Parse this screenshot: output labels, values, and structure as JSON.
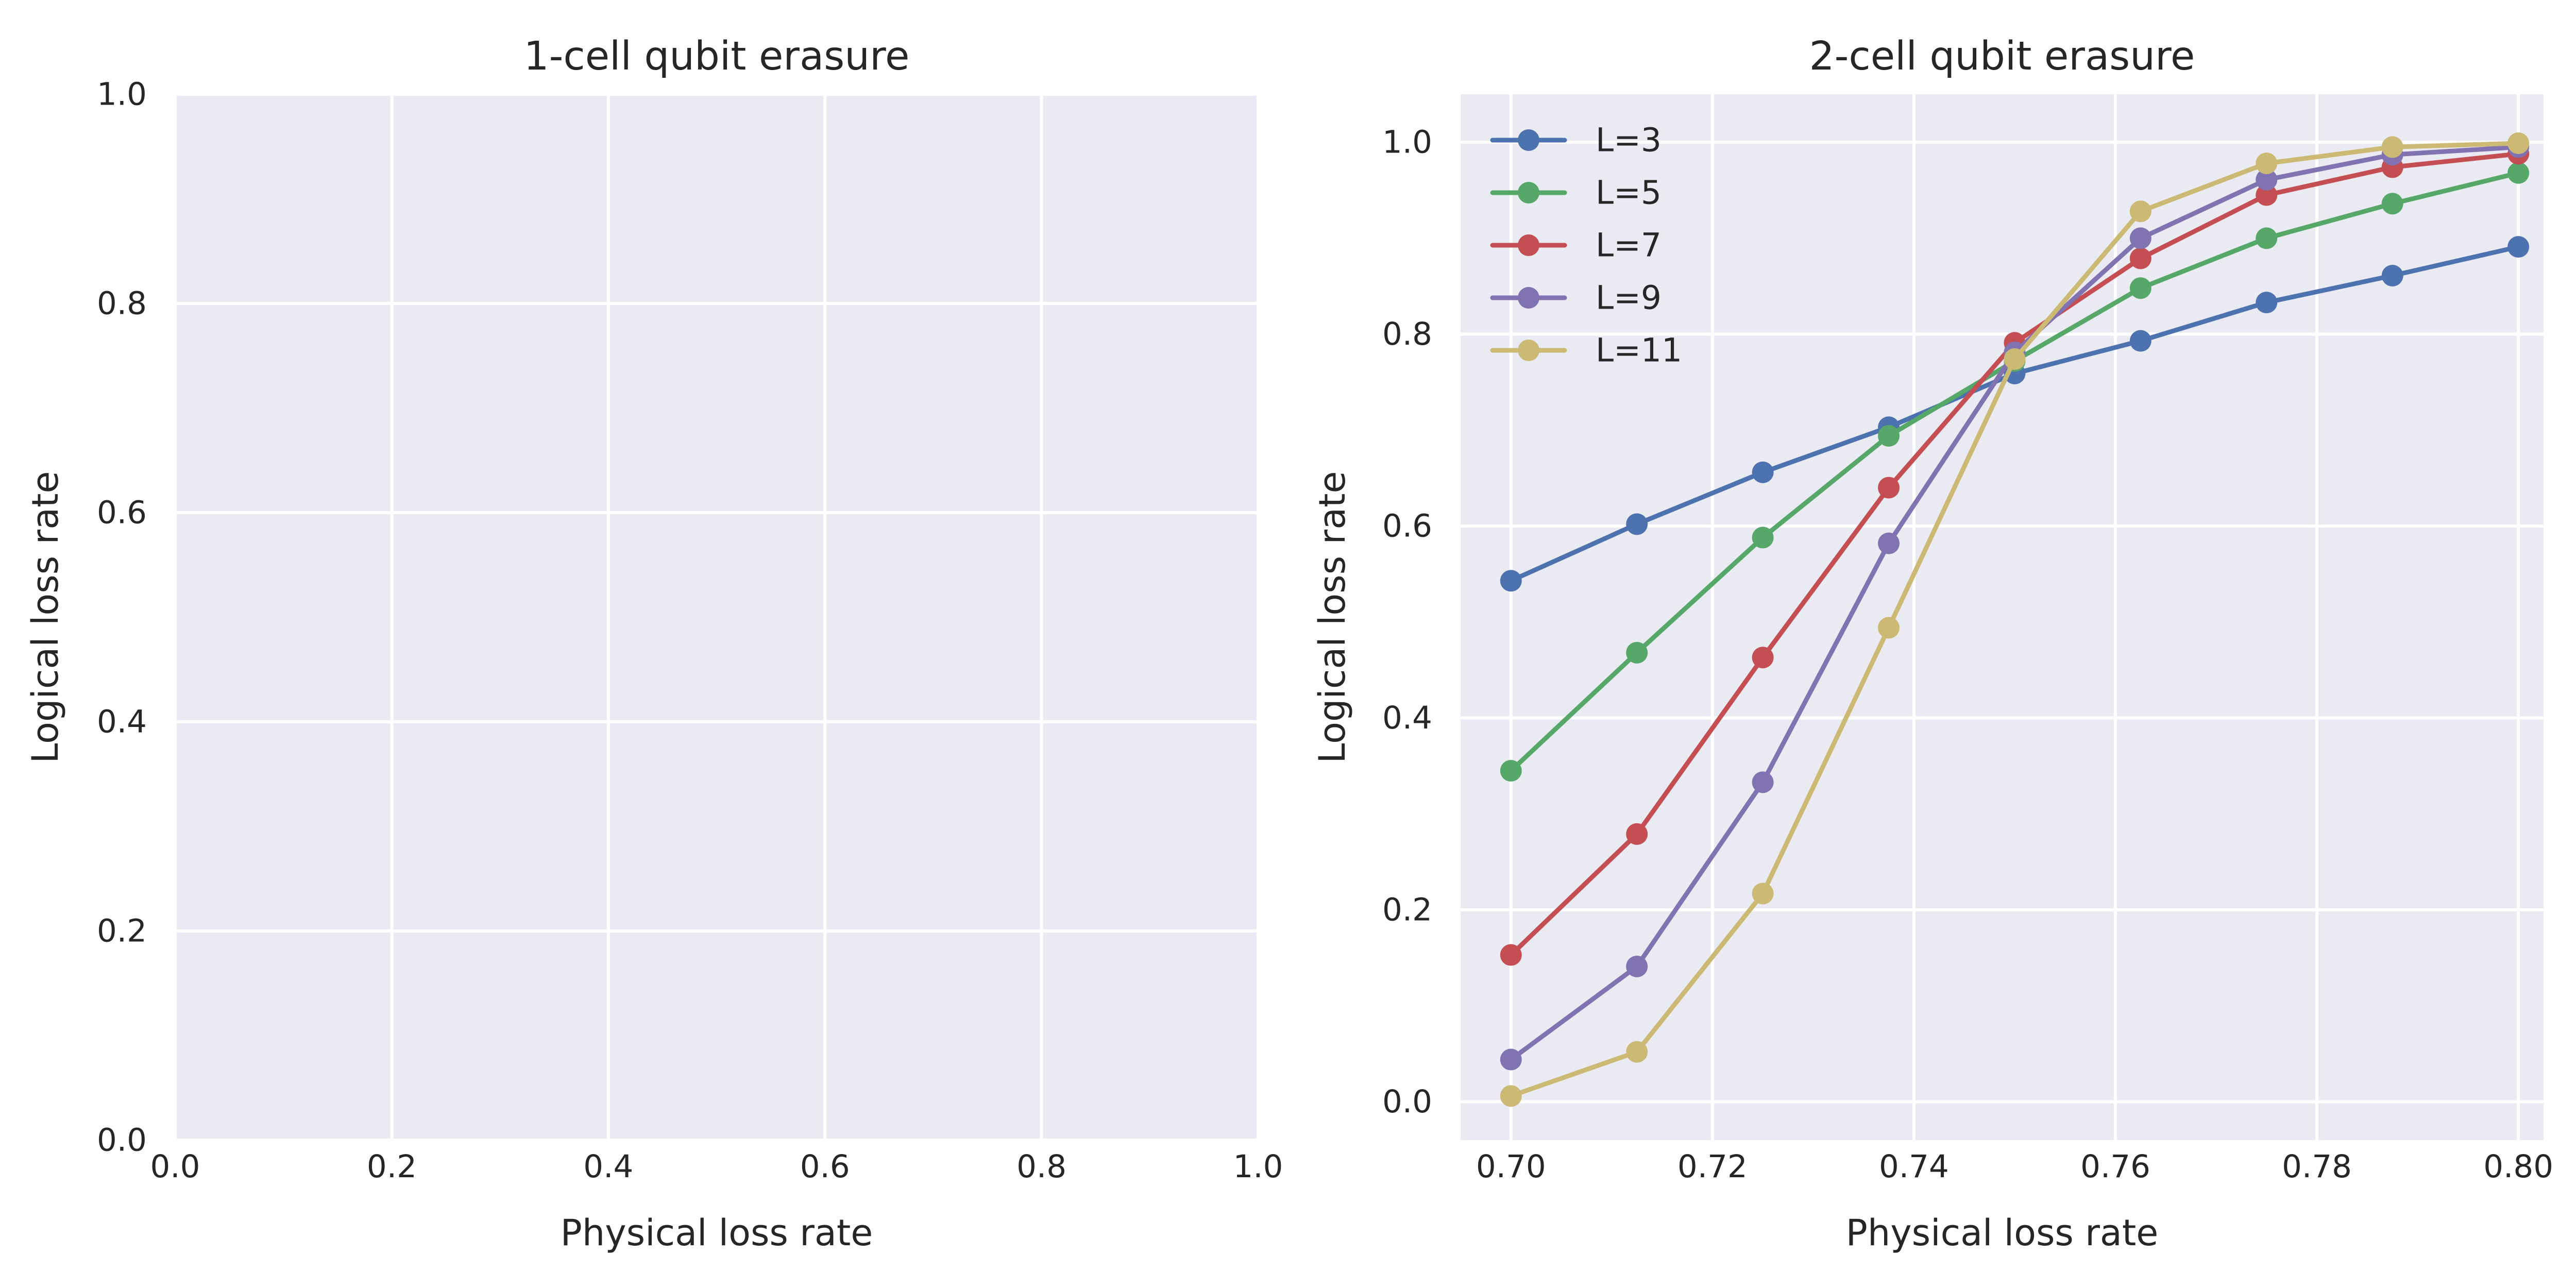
{
  "chart_data": [
    {
      "type": "line",
      "title": "1-cell qubit erasure",
      "xlabel": "Physical loss rate",
      "ylabel": "Logical loss rate",
      "xlim": [
        0.0,
        1.0
      ],
      "ylim": [
        0.0,
        1.0
      ],
      "xticks": [
        "0.0",
        "0.2",
        "0.4",
        "0.6",
        "0.8",
        "1.0"
      ],
      "yticks": [
        "0.0",
        "0.2",
        "0.4",
        "0.6",
        "0.8",
        "1.0"
      ],
      "grid": true,
      "series": []
    },
    {
      "type": "line",
      "title": "2-cell qubit erasure",
      "xlabel": "Physical loss rate",
      "ylabel": "Logical loss rate",
      "xlim": [
        0.695,
        0.8025
      ],
      "ylim": [
        -0.04,
        1.05
      ],
      "xticks": [
        "0.70",
        "0.72",
        "0.74",
        "0.76",
        "0.78",
        "0.80"
      ],
      "yticks": [
        "0.0",
        "0.2",
        "0.4",
        "0.6",
        "0.8",
        "1.0"
      ],
      "grid": true,
      "legend_position": "top-left",
      "x": [
        0.7,
        0.7125,
        0.725,
        0.7375,
        0.75,
        0.7625,
        0.775,
        0.7875,
        0.8
      ],
      "series": [
        {
          "name": "L=3",
          "color": "#4C72B0",
          "values": [
            0.543,
            0.602,
            0.656,
            0.703,
            0.759,
            0.793,
            0.833,
            0.861,
            0.891
          ]
        },
        {
          "name": "L=5",
          "color": "#55A868",
          "values": [
            0.345,
            0.468,
            0.588,
            0.694,
            0.772,
            0.848,
            0.9,
            0.936,
            0.968
          ]
        },
        {
          "name": "L=7",
          "color": "#C44E52",
          "values": [
            0.153,
            0.279,
            0.463,
            0.64,
            0.791,
            0.879,
            0.945,
            0.974,
            0.988
          ]
        },
        {
          "name": "L=9",
          "color": "#8172B2",
          "values": [
            0.044,
            0.141,
            0.333,
            0.582,
            0.781,
            0.9,
            0.961,
            0.987,
            0.995
          ]
        },
        {
          "name": "L=11",
          "color": "#CCB974",
          "values": [
            0.006,
            0.052,
            0.217,
            0.494,
            0.774,
            0.928,
            0.978,
            0.995,
            0.999
          ]
        }
      ]
    }
  ]
}
